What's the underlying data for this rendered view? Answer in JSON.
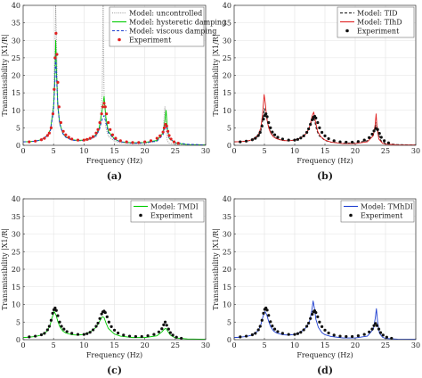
{
  "chart_data": [
    {
      "type": "line",
      "panel_label": "(a)",
      "xlabel": "Frequency (Hz)",
      "ylabel": "Transmissibility |X1/R|",
      "xlim": [
        0,
        30
      ],
      "ylim": [
        0,
        40
      ],
      "xticks": [
        0,
        5,
        10,
        15,
        20,
        25,
        30
      ],
      "yticks": [
        0,
        5,
        10,
        15,
        20,
        25,
        30,
        35,
        40
      ],
      "grid": true,
      "legend": "top-right",
      "series": [
        {
          "name": "Model: uncontrolled",
          "style": "dotted",
          "color": "#9a9a9a",
          "x": [
            0,
            1,
            2,
            3,
            4,
            4.5,
            5,
            5.2,
            5.35,
            5.5,
            5.7,
            6,
            6.5,
            7,
            8,
            9,
            10,
            11,
            12,
            12.6,
            13,
            13.15,
            13.3,
            13.6,
            14,
            15,
            16,
            18,
            20,
            22,
            23,
            23.3,
            23.5,
            23.7,
            24,
            25,
            27,
            30
          ],
          "y": [
            1,
            1.05,
            1.2,
            1.6,
            2.8,
            4.5,
            12,
            25,
            40,
            28,
            13,
            6.5,
            3.5,
            2.3,
            1.5,
            1.3,
            1.3,
            1.6,
            2.5,
            5,
            15,
            40,
            15,
            5,
            2.6,
            1.2,
            0.7,
            0.4,
            0.5,
            1.2,
            4,
            11,
            4,
            1.3,
            0.6,
            0.3,
            0.1,
            0.05
          ]
        },
        {
          "name": "Model: hysteretic damping",
          "style": "solid",
          "color": "#00cc00",
          "x": [
            0,
            1,
            2,
            3,
            4,
            4.5,
            5,
            5.2,
            5.35,
            5.5,
            5.7,
            6,
            6.5,
            7,
            8,
            9,
            10,
            11,
            12,
            12.5,
            13,
            13.3,
            13.6,
            14,
            15,
            16,
            18,
            20,
            22,
            23,
            23.3,
            23.5,
            23.7,
            24,
            25,
            27,
            30
          ],
          "y": [
            1,
            1.05,
            1.2,
            1.6,
            2.8,
            4.6,
            11,
            18,
            30,
            20,
            11,
            6.5,
            3.5,
            2.4,
            1.6,
            1.4,
            1.5,
            1.9,
            3,
            5,
            10,
            14,
            8,
            4,
            1.8,
            1,
            0.7,
            0.8,
            1.4,
            3.5,
            7,
            10,
            5,
            2,
            0.7,
            0.2,
            0.1
          ]
        },
        {
          "name": "Model: viscous damping",
          "style": "dashed",
          "color": "#1f3fd0",
          "x": [
            0,
            1,
            2,
            3,
            4,
            4.5,
            5,
            5.2,
            5.35,
            5.5,
            5.7,
            6,
            6.5,
            7,
            8,
            9,
            10,
            11,
            12,
            12.5,
            13,
            13.3,
            13.6,
            14,
            15,
            16,
            18,
            20,
            22,
            23,
            23.3,
            23.5,
            23.7,
            24,
            25,
            27,
            30
          ],
          "y": [
            1,
            1.05,
            1.2,
            1.6,
            2.7,
            4.3,
            10,
            17,
            26,
            19,
            11,
            6.2,
            3.4,
            2.3,
            1.5,
            1.3,
            1.4,
            1.8,
            2.8,
            4.3,
            7.5,
            8.5,
            6.5,
            3.6,
            1.7,
            1,
            0.6,
            0.7,
            1.2,
            3,
            5.5,
            6,
            4.3,
            2,
            0.8,
            0.3,
            0.1
          ]
        },
        {
          "name": "Experiment",
          "style": "markers",
          "color": "#e02020",
          "x": [
            1,
            2,
            3,
            3.5,
            4,
            4.3,
            4.6,
            4.9,
            5.1,
            5.25,
            5.4,
            5.55,
            5.7,
            5.9,
            6.2,
            6.6,
            7,
            7.5,
            8,
            9,
            10,
            10.5,
            11,
            11.5,
            12,
            12.3,
            12.6,
            12.9,
            13.1,
            13.3,
            13.5,
            13.7,
            14,
            14.3,
            14.7,
            15.2,
            16,
            17,
            18,
            19,
            20,
            21,
            22,
            22.5,
            23,
            23.2,
            23.4,
            23.6,
            23.8,
            24,
            24.3,
            24.8,
            25.5
          ],
          "y": [
            1,
            1.2,
            1.6,
            2,
            2.8,
            3.5,
            5,
            9,
            16,
            25,
            32,
            26,
            18,
            11,
            6.5,
            4,
            3,
            2.3,
            1.8,
            1.5,
            1.5,
            1.7,
            2,
            2.5,
            3.5,
            4.5,
            6.5,
            9,
            11,
            12,
            11,
            9,
            6.5,
            4.5,
            3,
            2,
            1.3,
            1,
            0.8,
            0.8,
            1,
            1.3,
            2,
            2.7,
            3.8,
            5,
            6,
            5.5,
            4,
            2.8,
            1.8,
            1,
            0.6
          ]
        }
      ]
    },
    {
      "type": "line",
      "panel_label": "(b)",
      "xlabel": "Frequency (Hz)",
      "ylabel": "Transmissibility |X1/R|",
      "xlim": [
        0,
        30
      ],
      "ylim": [
        0,
        40
      ],
      "xticks": [
        0,
        5,
        10,
        15,
        20,
        25,
        30
      ],
      "yticks": [
        0,
        5,
        10,
        15,
        20,
        25,
        30,
        35,
        40
      ],
      "grid": true,
      "legend": "top-right",
      "series": [
        {
          "name": "Model: TID",
          "style": "dashed",
          "color": "#111111",
          "x": [
            0,
            1,
            2,
            3,
            4,
            4.4,
            4.7,
            5,
            5.3,
            5.6,
            6,
            6.5,
            7,
            8,
            9,
            10,
            11,
            12,
            12.5,
            13,
            13.3,
            13.6,
            14,
            15,
            16,
            18,
            20,
            22,
            22.8,
            23.2,
            23.5,
            23.8,
            24.2,
            25,
            27,
            30
          ],
          "y": [
            1,
            1.05,
            1.2,
            1.5,
            2.6,
            4,
            7,
            10.5,
            9,
            6,
            3.8,
            2.5,
            1.9,
            1.4,
            1.3,
            1.5,
            2.1,
            3.5,
            5.5,
            8,
            7,
            4.5,
            2.8,
            1.4,
            0.9,
            0.6,
            0.7,
            1.3,
            2.6,
            4.5,
            6.5,
            3.5,
            1.4,
            0.5,
            0.2,
            0.1
          ]
        },
        {
          "name": "Model: TIhD",
          "style": "solid",
          "color": "#e02020",
          "x": [
            0,
            1,
            2,
            3,
            4,
            4.4,
            4.7,
            4.95,
            5.15,
            5.4,
            5.7,
            6,
            6.5,
            7,
            8,
            9,
            10,
            11,
            12,
            12.5,
            12.9,
            13.15,
            13.4,
            13.8,
            14.3,
            15,
            16,
            18,
            20,
            22,
            23,
            23.3,
            23.45,
            23.6,
            23.9,
            24.5,
            25,
            27,
            30
          ],
          "y": [
            1,
            1.05,
            1.2,
            1.6,
            3,
            5,
            9,
            14.5,
            12,
            7.5,
            5,
            3.6,
            2.4,
            1.9,
            1.4,
            1.3,
            1.5,
            2.1,
            3.5,
            5.5,
            8.5,
            9.5,
            7,
            4,
            2.5,
            1.5,
            0.9,
            0.5,
            0.5,
            1,
            2.8,
            6,
            9,
            5,
            1.8,
            0.6,
            0.35,
            0.15,
            0.1
          ]
        },
        {
          "name": "Experiment",
          "style": "markers",
          "color": "#111111",
          "x": [
            1,
            2,
            3,
            3.5,
            4,
            4.3,
            4.6,
            4.85,
            5.05,
            5.25,
            5.45,
            5.7,
            6,
            6.3,
            6.7,
            7.2,
            8,
            9,
            10,
            10.5,
            11,
            11.5,
            12,
            12.3,
            12.6,
            12.9,
            13.1,
            13.3,
            13.5,
            13.8,
            14.1,
            14.5,
            15,
            15.6,
            16.5,
            17.5,
            18.5,
            19.5,
            20.5,
            21.5,
            22.3,
            22.8,
            23.1,
            23.4,
            23.7,
            24,
            24.3,
            24.8,
            25.5
          ],
          "y": [
            1,
            1.2,
            1.6,
            2,
            2.8,
            3.7,
            5.5,
            7.5,
            8.5,
            9,
            8.2,
            6.5,
            5,
            3.8,
            3,
            2.3,
            1.8,
            1.5,
            1.5,
            1.7,
            2.1,
            2.7,
            3.7,
            4.7,
            6,
            7.3,
            8,
            8.3,
            7.8,
            6.5,
            5,
            3.7,
            2.7,
            1.9,
            1.3,
            1,
            0.9,
            0.9,
            1.1,
            1.5,
            2.2,
            3.2,
            4.1,
            4.8,
            4.5,
            3.4,
            2.3,
            1.3,
            0.7
          ]
        }
      ]
    },
    {
      "type": "line",
      "panel_label": "(c)",
      "xlabel": "Frequency (Hz)",
      "ylabel": "Transmissibility |X1/R|",
      "xlim": [
        0,
        30
      ],
      "ylim": [
        0,
        40
      ],
      "xticks": [
        0,
        5,
        10,
        15,
        20,
        25,
        30
      ],
      "yticks": [
        0,
        5,
        10,
        15,
        20,
        25,
        30,
        35,
        40
      ],
      "grid": true,
      "legend": "top-right",
      "series": [
        {
          "name": "Model: TMDI",
          "style": "solid",
          "color": "#00cc00",
          "x": [
            0,
            1,
            2,
            3,
            4,
            4.4,
            4.8,
            5.1,
            5.4,
            5.7,
            6,
            6.5,
            7,
            8,
            9,
            10,
            11,
            12,
            12.5,
            13,
            13.3,
            13.6,
            14,
            15,
            16,
            18,
            20,
            22,
            22.8,
            23.2,
            23.5,
            23.8,
            24.2,
            25,
            27,
            30
          ],
          "y": [
            0.6,
            0.7,
            0.9,
            1.3,
            2.5,
            4,
            6.5,
            8,
            7,
            5.2,
            3.8,
            2.5,
            1.9,
            1.4,
            1.3,
            1.5,
            2.2,
            3.5,
            5,
            6.5,
            6.3,
            4.8,
            3.2,
            1.6,
            1,
            0.6,
            0.6,
            1.1,
            2.2,
            3,
            3.2,
            2.3,
            1.3,
            0.5,
            0.2,
            0.1
          ]
        },
        {
          "name": "Experiment",
          "style": "markers",
          "color": "#111111",
          "x": [
            1,
            2,
            3,
            3.5,
            4,
            4.3,
            4.6,
            4.85,
            5.05,
            5.25,
            5.45,
            5.7,
            6,
            6.3,
            6.7,
            7.2,
            8,
            9,
            10,
            10.5,
            11,
            11.5,
            12,
            12.3,
            12.6,
            12.9,
            13.1,
            13.3,
            13.5,
            13.8,
            14.1,
            14.5,
            15,
            15.6,
            16.5,
            17.5,
            18.5,
            19.5,
            20.5,
            21.5,
            22.3,
            22.8,
            23.1,
            23.35,
            23.6,
            23.9,
            24.2,
            24.6,
            25.2,
            26
          ],
          "y": [
            0.8,
            1,
            1.4,
            1.8,
            2.8,
            3.8,
            5.5,
            7.5,
            8.5,
            9,
            8.3,
            6.8,
            5,
            3.8,
            3,
            2.3,
            1.8,
            1.5,
            1.5,
            1.7,
            2.1,
            2.8,
            3.8,
            4.7,
            6,
            7.3,
            7.9,
            8.1,
            7.7,
            6.5,
            5,
            3.7,
            2.7,
            1.9,
            1.3,
            1,
            0.9,
            0.9,
            1.1,
            1.5,
            2.2,
            3.1,
            4.2,
            5,
            4.1,
            3,
            2,
            1.3,
            0.7,
            0.4
          ]
        }
      ]
    },
    {
      "type": "line",
      "panel_label": "(d)",
      "xlabel": "Frequency (Hz)",
      "ylabel": "Transmissibility |X1/R|",
      "xlim": [
        0,
        30
      ],
      "ylim": [
        0,
        40
      ],
      "xticks": [
        0,
        5,
        10,
        15,
        20,
        25,
        30
      ],
      "yticks": [
        0,
        5,
        10,
        15,
        20,
        25,
        30,
        35,
        40
      ],
      "grid": true,
      "legend": "top-right",
      "series": [
        {
          "name": "Model: TMhDI",
          "style": "solid",
          "color": "#1f3fd0",
          "x": [
            0,
            1,
            2,
            3,
            4,
            4.4,
            4.8,
            5.1,
            5.4,
            5.7,
            6,
            6.5,
            7,
            8,
            9,
            10,
            11,
            12,
            12.5,
            12.85,
            13.05,
            13.25,
            13.5,
            13.9,
            14.5,
            15,
            16,
            18,
            20,
            22,
            23,
            23.3,
            23.5,
            23.7,
            24,
            24.5,
            25,
            27,
            30
          ],
          "y": [
            0.6,
            0.7,
            0.9,
            1.3,
            2.6,
            4.2,
            6.8,
            8,
            7,
            5.2,
            3.8,
            2.5,
            1.9,
            1.4,
            1.3,
            1.5,
            2.2,
            3.6,
            5.5,
            8.5,
            11,
            9,
            5.8,
            3.5,
            2,
            1.4,
            0.9,
            0.5,
            0.5,
            1,
            3,
            6,
            8.8,
            5,
            1.8,
            0.7,
            0.35,
            0.15,
            0.1
          ]
        },
        {
          "name": "Experiment",
          "style": "markers",
          "color": "#111111",
          "x": [
            1,
            2,
            3,
            3.5,
            4,
            4.3,
            4.6,
            4.85,
            5.05,
            5.25,
            5.45,
            5.7,
            6,
            6.3,
            6.7,
            7.2,
            8,
            9,
            10,
            10.5,
            11,
            11.5,
            12,
            12.3,
            12.6,
            12.9,
            13.1,
            13.3,
            13.5,
            13.8,
            14.1,
            14.5,
            15,
            15.6,
            16.5,
            17.5,
            18.5,
            19.5,
            20.5,
            21.5,
            22.3,
            22.8,
            23.1,
            23.35,
            23.6,
            23.9,
            24.2,
            24.6,
            25.2,
            26
          ],
          "y": [
            0.8,
            1,
            1.4,
            1.8,
            2.8,
            3.8,
            5.5,
            7.5,
            8.6,
            9,
            8.4,
            6.9,
            5.1,
            3.9,
            3,
            2.3,
            1.8,
            1.5,
            1.5,
            1.7,
            2.1,
            2.8,
            3.8,
            4.7,
            6,
            7.2,
            7.9,
            8.2,
            7.7,
            6.5,
            5,
            3.7,
            2.7,
            1.9,
            1.3,
            1,
            0.9,
            0.9,
            1.1,
            1.5,
            2.2,
            3,
            4,
            4.6,
            4,
            3,
            2,
            1.3,
            0.7,
            0.4
          ]
        }
      ]
    }
  ]
}
